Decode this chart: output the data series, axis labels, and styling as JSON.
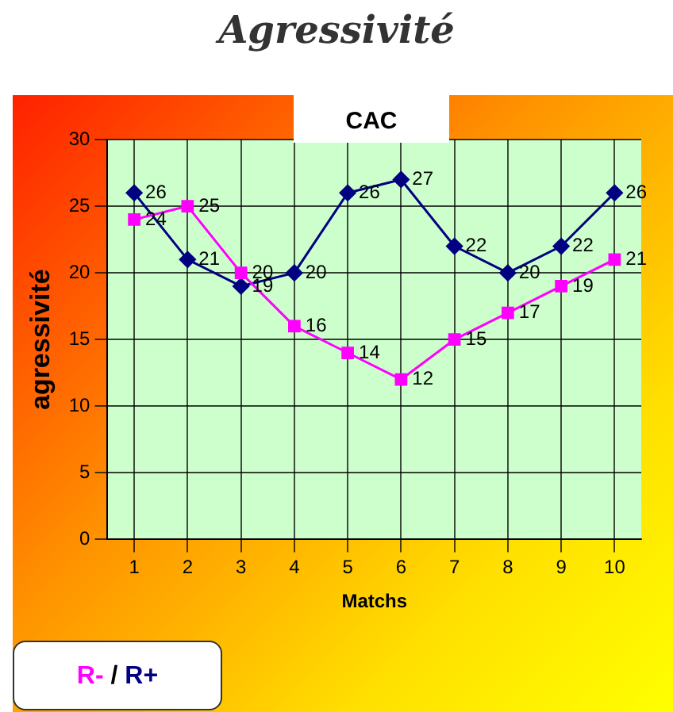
{
  "chart_data": {
    "type": "line",
    "title": "Agressivité",
    "subtitle": "CAC",
    "xlabel": "Matchs",
    "ylabel": "agressivité",
    "categories": [
      "1",
      "2",
      "3",
      "4",
      "5",
      "6",
      "7",
      "8",
      "9",
      "10"
    ],
    "series": [
      {
        "name": "R-",
        "color": "#ff00ff",
        "marker": "square",
        "values": [
          24,
          25,
          20,
          16,
          14,
          12,
          15,
          17,
          19,
          21
        ]
      },
      {
        "name": "R+",
        "color": "#000080",
        "marker": "diamond",
        "values": [
          26,
          21,
          19,
          20,
          26,
          27,
          22,
          20,
          22,
          26
        ]
      }
    ],
    "annotations": [
      "/"
    ],
    "ylim": [
      0,
      30
    ],
    "yticks": [
      0,
      5,
      10,
      15,
      20,
      25,
      30
    ],
    "grid": true,
    "legend": "bottom left",
    "data_labels": true
  }
}
